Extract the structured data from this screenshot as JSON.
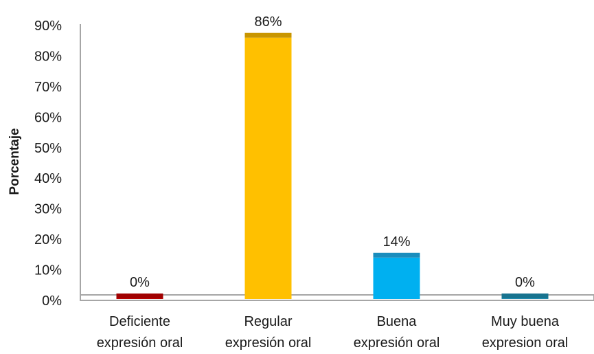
{
  "chart_data": {
    "type": "bar",
    "title": "",
    "ylabel": "Porcentaje",
    "xlabel": "",
    "ylim": [
      0,
      90
    ],
    "yticks": [
      0,
      10,
      20,
      30,
      40,
      50,
      60,
      70,
      80,
      90
    ],
    "ytick_labels": [
      "0%",
      "10%",
      "20%",
      "30%",
      "40%",
      "50%",
      "60%",
      "70%",
      "80%",
      "90%"
    ],
    "grid": false,
    "categories": [
      [
        "Deficiente",
        "expresión oral"
      ],
      [
        "Regular",
        "expresión oral"
      ],
      [
        "Buena",
        "expresión oral"
      ],
      [
        "Muy buena",
        "expresion oral"
      ]
    ],
    "values": [
      0,
      86,
      14,
      0
    ],
    "data_labels": [
      "0%",
      "86%",
      "14%",
      "0%"
    ],
    "bar_colors": [
      "#c00000",
      "#ffc000",
      "#00b0f0",
      "#1f8fb4"
    ],
    "bar_top_colors": [
      "#a00000",
      "#c89500",
      "#1a8dbd",
      "#18738f"
    ],
    "axis_color": "#a6a6a6"
  }
}
